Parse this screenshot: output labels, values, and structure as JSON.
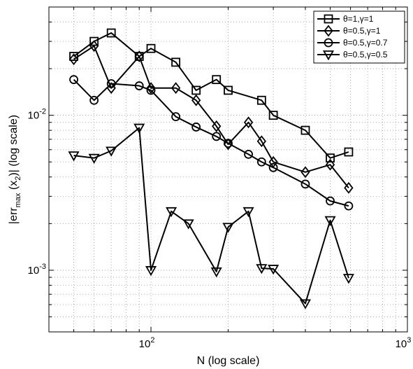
{
  "chart_data": {
    "type": "line",
    "xscale": "log",
    "yscale": "log",
    "xlim": [
      40,
      1000
    ],
    "ylim": [
      0.0004,
      0.05
    ],
    "grid": true,
    "legend_position": "top-right",
    "xlabel": "N (log scale)",
    "ylabel": "|err_max (x_2)| (log scale)",
    "ylabel_parts": {
      "pre": "|err",
      "sub1": "max",
      "mid": " (x",
      "sub2": "2",
      "post": ")| (log scale)"
    },
    "x_tick_labels": [
      {
        "value": 100,
        "base": "10",
        "exp": "2"
      },
      {
        "value": 1000,
        "base": "10",
        "exp": "3"
      }
    ],
    "y_tick_labels": [
      {
        "value": 0.001,
        "base": "10",
        "exp": "-3"
      },
      {
        "value": 0.01,
        "base": "10",
        "exp": "-2"
      }
    ],
    "series": [
      {
        "name": "θ=1,γ=1",
        "marker": "square",
        "points": [
          [
            50,
            0.024
          ],
          [
            60,
            0.03
          ],
          [
            70,
            0.034
          ],
          [
            90,
            0.024
          ],
          [
            100,
            0.027
          ],
          [
            125,
            0.022
          ],
          [
            150,
            0.0145
          ],
          [
            180,
            0.017
          ],
          [
            200,
            0.0145
          ],
          [
            270,
            0.0125
          ],
          [
            300,
            0.01
          ],
          [
            400,
            0.008
          ],
          [
            500,
            0.0053
          ],
          [
            590,
            0.0058
          ]
        ]
      },
      {
        "name": "θ=0.5,γ=1",
        "marker": "diamond",
        "points": [
          [
            50,
            0.023
          ],
          [
            60,
            0.028
          ],
          [
            70,
            0.015
          ],
          [
            90,
            0.024
          ],
          [
            100,
            0.015
          ],
          [
            125,
            0.015
          ],
          [
            150,
            0.0125
          ],
          [
            180,
            0.0085
          ],
          [
            200,
            0.0065
          ],
          [
            240,
            0.009
          ],
          [
            270,
            0.0068
          ],
          [
            300,
            0.005
          ],
          [
            400,
            0.0043
          ],
          [
            500,
            0.0048
          ],
          [
            590,
            0.0034
          ]
        ]
      },
      {
        "name": "θ=0.5,γ=0.7",
        "marker": "circle",
        "points": [
          [
            50,
            0.017
          ],
          [
            60,
            0.0125
          ],
          [
            70,
            0.016
          ],
          [
            90,
            0.0155
          ],
          [
            100,
            0.0145
          ],
          [
            125,
            0.0098
          ],
          [
            150,
            0.0084
          ],
          [
            180,
            0.0073
          ],
          [
            200,
            0.0066
          ],
          [
            240,
            0.0056
          ],
          [
            270,
            0.005
          ],
          [
            300,
            0.0046
          ],
          [
            400,
            0.0036
          ],
          [
            500,
            0.0028
          ],
          [
            590,
            0.0026
          ]
        ]
      },
      {
        "name": "θ=0.5,γ=0.5",
        "marker": "triangle-down",
        "points": [
          [
            50,
            0.0055
          ],
          [
            60,
            0.0053
          ],
          [
            70,
            0.0059
          ],
          [
            90,
            0.0083
          ],
          [
            100,
            0.001
          ],
          [
            120,
            0.0024
          ],
          [
            140,
            0.002
          ],
          [
            180,
            0.00098
          ],
          [
            200,
            0.0019
          ],
          [
            240,
            0.0024
          ],
          [
            270,
            0.00103
          ],
          [
            300,
            0.00102
          ],
          [
            400,
            0.00061
          ],
          [
            500,
            0.0021
          ],
          [
            590,
            0.00089
          ]
        ]
      }
    ]
  }
}
